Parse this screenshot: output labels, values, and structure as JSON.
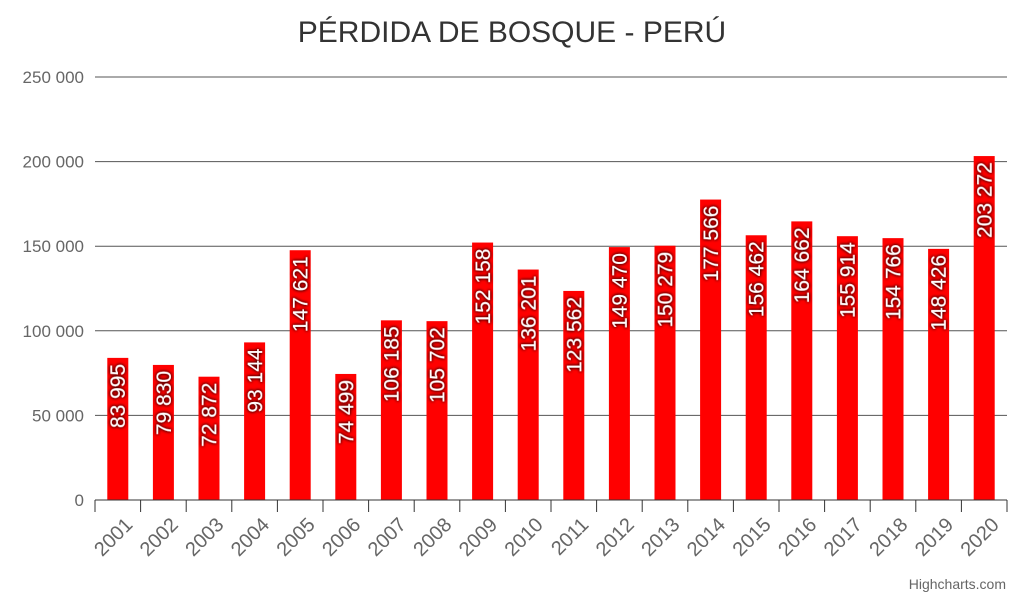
{
  "chart_data": {
    "type": "bar",
    "title": "PÉRDIDA DE BOSQUE - PERÚ",
    "categories": [
      "2001",
      "2002",
      "2003",
      "2004",
      "2005",
      "2006",
      "2007",
      "2008",
      "2009",
      "2010",
      "2011",
      "2012",
      "2013",
      "2014",
      "2015",
      "2016",
      "2017",
      "2018",
      "2019",
      "2020"
    ],
    "values": [
      83995,
      79830,
      72872,
      93144,
      147621,
      74499,
      106185,
      105702,
      152158,
      136201,
      123562,
      149470,
      150279,
      177566,
      156462,
      164662,
      155914,
      154766,
      148426,
      203272
    ],
    "data_labels": [
      "83 995",
      "79 830",
      "72 872",
      "93 144",
      "147 621",
      "74 499",
      "106 185",
      "105 702",
      "152 158",
      "136 201",
      "123 562",
      "149 470",
      "150 279",
      "177 566",
      "156 462",
      "164 662",
      "155 914",
      "154 766",
      "148 426",
      "203 272"
    ],
    "ylim": [
      0,
      250000
    ],
    "yticks": [
      0,
      50000,
      100000,
      150000,
      200000,
      250000
    ],
    "ytick_labels": [
      "0",
      "50 000",
      "100 000",
      "150 000",
      "200 000",
      "250 000"
    ],
    "bar_color": "#ff0000",
    "grid": true,
    "legend": "none"
  },
  "credits": "Highcharts.com"
}
